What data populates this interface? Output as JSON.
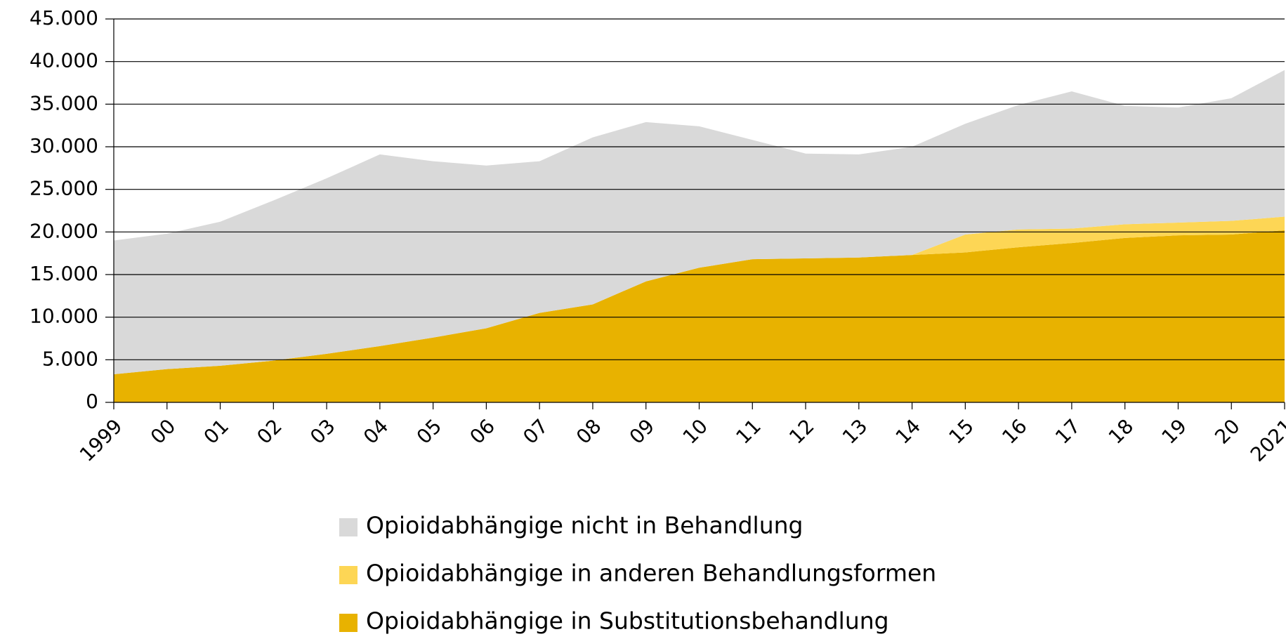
{
  "chart_data": {
    "type": "stacked_area",
    "categories": [
      "1999",
      "00",
      "01",
      "02",
      "03",
      "04",
      "05",
      "06",
      "07",
      "08",
      "09",
      "10",
      "11",
      "12",
      "13",
      "14",
      "15",
      "16",
      "17",
      "18",
      "19",
      "20",
      "2021"
    ],
    "series": [
      {
        "name": "Opioidabhängige in Substitutionsbehandlung",
        "color": "#e8b200",
        "values": [
          3300,
          3900,
          4300,
          4900,
          5700,
          6600,
          7600,
          8700,
          10500,
          11500,
          14200,
          15800,
          16800,
          16900,
          17000,
          17300,
          17600,
          18200,
          18700,
          19300,
          19600,
          19700,
          20200
        ]
      },
      {
        "name": "Opioidabhängige in anderen Behandlungsformen",
        "color": "#fdd655",
        "values": [
          0,
          0,
          0,
          0,
          0,
          0,
          0,
          0,
          0,
          0,
          0,
          0,
          0,
          0,
          0,
          0,
          2100,
          2100,
          1700,
          1600,
          1500,
          1600,
          1600
        ]
      },
      {
        "name": "Opioidabhängige nicht in Behandlung",
        "color": "#d9d9d9",
        "values": [
          15700,
          15900,
          16900,
          18800,
          20600,
          22500,
          20700,
          19100,
          17800,
          19600,
          18700,
          16600,
          14000,
          12300,
          12100,
          12700,
          13000,
          14600,
          16100,
          13900,
          13500,
          14400,
          17200
        ]
      }
    ],
    "ylim": [
      0,
      45000
    ],
    "yticks": [
      0,
      {
        "value": 5000,
        "label": "5.000"
      },
      {
        "value": 10000,
        "label": "10.000"
      },
      {
        "value": 15000,
        "label": "15.000"
      },
      {
        "value": 20000,
        "label": "20.000"
      },
      {
        "value": 25000,
        "label": "25.000"
      },
      {
        "value": 30000,
        "label": "30.000"
      },
      {
        "value": 35000,
        "label": "35.000"
      },
      {
        "value": 40000,
        "label": "40.000"
      },
      {
        "value": 45000,
        "label": "45.000"
      }
    ],
    "grid": true
  }
}
